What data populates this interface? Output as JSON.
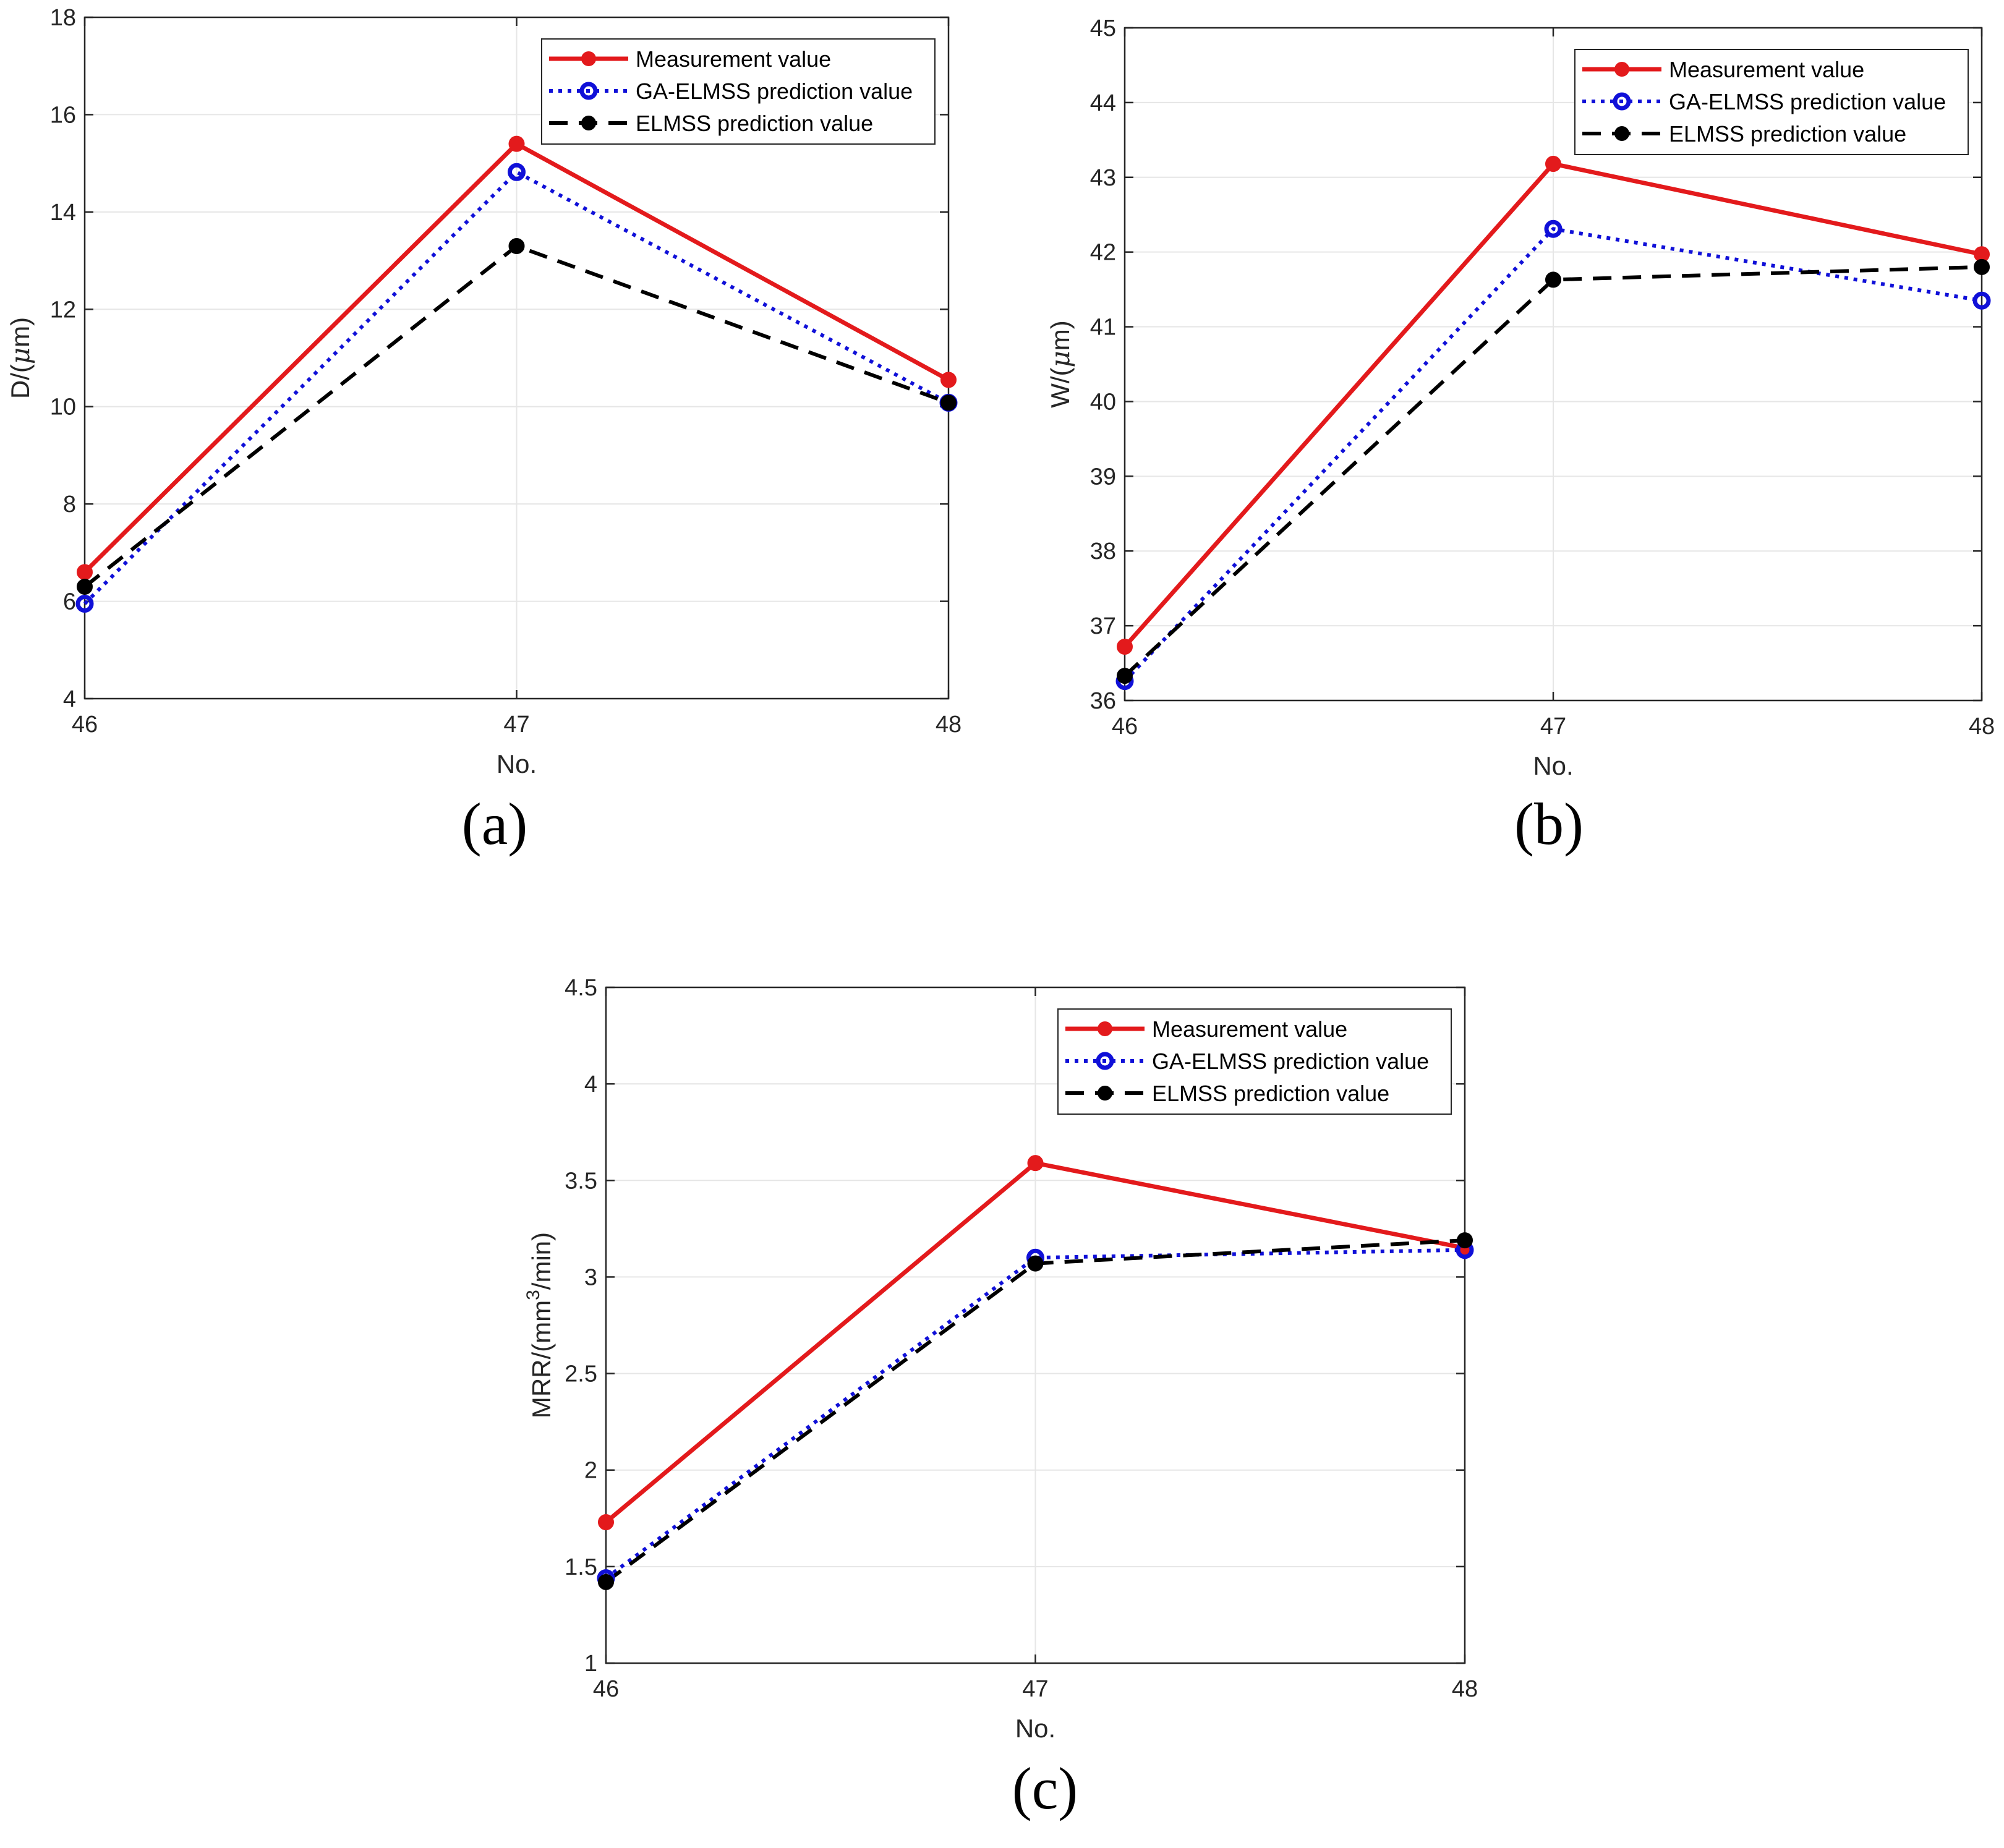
{
  "colors": {
    "measurement": "#e31a1c",
    "ga_elmss": "#1010d8",
    "elmss": "#000000",
    "grid": "#e6e6e6",
    "axis": "#262626"
  },
  "chart_data": [
    {
      "type": "line",
      "panel": "(a)",
      "title": "",
      "xlabel": "No.",
      "ylabel_parts": [
        "D/(",
        "μ",
        "m)"
      ],
      "ylabel_sup": "",
      "x": [
        46,
        47,
        48
      ],
      "xticks": [
        46,
        47,
        48
      ],
      "xtick_labels": [
        "46",
        "47",
        "48"
      ],
      "xlim": [
        46,
        48
      ],
      "ylim": [
        4,
        18
      ],
      "yticks": [
        4,
        6,
        8,
        10,
        12,
        14,
        16,
        18
      ],
      "ytick_labels": [
        "4",
        "6",
        "8",
        "10",
        "12",
        "14",
        "16",
        "18"
      ],
      "grid": true,
      "legend_position": "top-right",
      "series": [
        {
          "name": "Measurement value",
          "style": "solid",
          "marker": "filled-circle",
          "color_key": "measurement",
          "values": [
            6.6,
            15.4,
            10.55
          ]
        },
        {
          "name": "GA-ELMSS prediction value",
          "style": "dotted",
          "marker": "open-circle",
          "color_key": "ga_elmss",
          "values": [
            5.95,
            14.82,
            10.08
          ]
        },
        {
          "name": "ELMSS prediction value",
          "style": "dashed",
          "marker": "filled-circle",
          "color_key": "elmss",
          "values": [
            6.3,
            13.3,
            10.08
          ]
        }
      ]
    },
    {
      "type": "line",
      "panel": "(b)",
      "title": "",
      "xlabel": "No.",
      "ylabel_parts": [
        "W/(",
        "μ",
        "m)"
      ],
      "ylabel_sup": "",
      "x": [
        46,
        47,
        48
      ],
      "xticks": [
        46,
        47,
        48
      ],
      "xtick_labels": [
        "46",
        "47",
        "48"
      ],
      "xlim": [
        46,
        48
      ],
      "ylim": [
        36,
        45
      ],
      "yticks": [
        36,
        37,
        38,
        39,
        40,
        41,
        42,
        43,
        44,
        45
      ],
      "ytick_labels": [
        "36",
        "37",
        "38",
        "39",
        "40",
        "41",
        "42",
        "43",
        "44",
        "45"
      ],
      "grid": true,
      "legend_position": "top-right",
      "series": [
        {
          "name": "Measurement value",
          "style": "solid",
          "marker": "filled-circle",
          "color_key": "measurement",
          "values": [
            36.72,
            43.18,
            41.97
          ]
        },
        {
          "name": "GA-ELMSS prediction value",
          "style": "dotted",
          "marker": "open-circle",
          "color_key": "ga_elmss",
          "values": [
            36.26,
            42.31,
            41.35
          ]
        },
        {
          "name": "ELMSS prediction value",
          "style": "dashed",
          "marker": "filled-circle",
          "color_key": "elmss",
          "values": [
            36.33,
            41.63,
            41.8
          ]
        }
      ]
    },
    {
      "type": "line",
      "panel": "(c)",
      "title": "",
      "xlabel": "No.",
      "ylabel_parts": [
        "MRR/(mm",
        "",
        ""
      ],
      "ylabel_sup": "3",
      "ylabel_tail": "/min)",
      "x": [
        46,
        47,
        48
      ],
      "xticks": [
        46,
        47,
        48
      ],
      "xtick_labels": [
        "46",
        "47",
        "48"
      ],
      "xlim": [
        46,
        48
      ],
      "ylim": [
        1,
        4.5
      ],
      "yticks": [
        1,
        1.5,
        2,
        2.5,
        3,
        3.5,
        4,
        4.5
      ],
      "ytick_labels": [
        "1",
        "1.5",
        "2",
        "2.5",
        "3",
        "3.5",
        "4",
        "4.5"
      ],
      "grid": true,
      "legend_position": "top-right",
      "series": [
        {
          "name": "Measurement value",
          "style": "solid",
          "marker": "filled-circle",
          "color_key": "measurement",
          "values": [
            1.73,
            3.59,
            3.15
          ]
        },
        {
          "name": "GA-ELMSS prediction value",
          "style": "dotted",
          "marker": "open-circle",
          "color_key": "ga_elmss",
          "values": [
            1.44,
            3.1,
            3.14
          ]
        },
        {
          "name": "ELMSS prediction value",
          "style": "dashed",
          "marker": "filled-circle",
          "color_key": "elmss",
          "values": [
            1.42,
            3.07,
            3.19
          ]
        }
      ]
    }
  ]
}
